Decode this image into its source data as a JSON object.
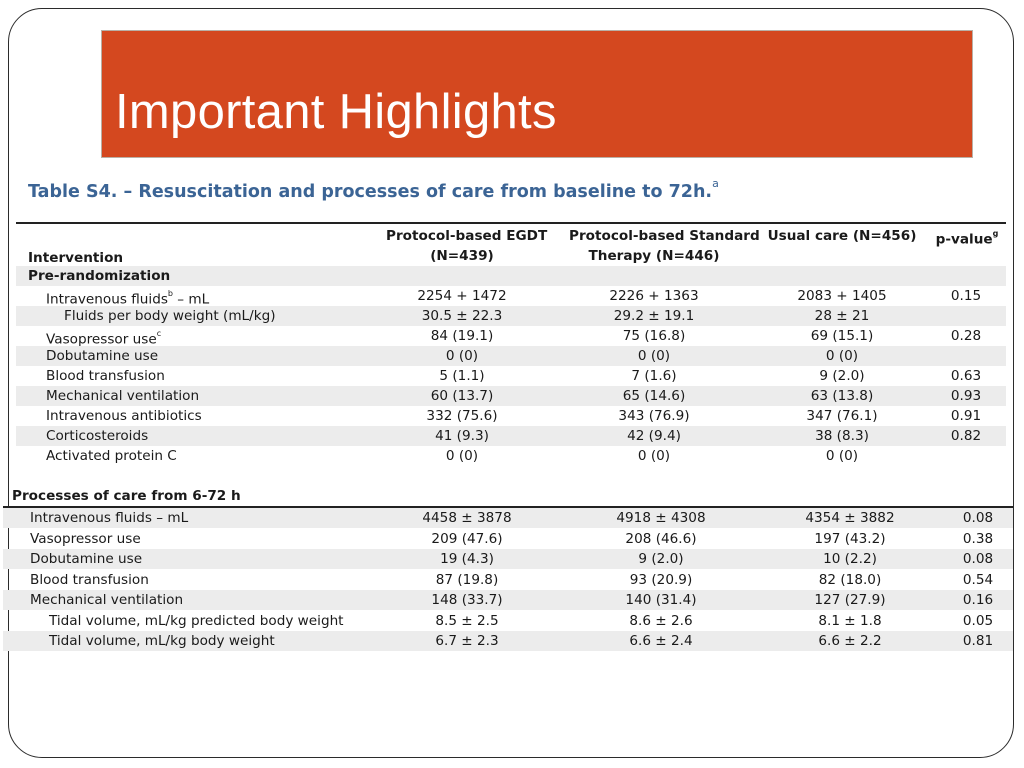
{
  "slide": {
    "title": "Important Highlights"
  },
  "table": {
    "title": "Table S4. – Resuscitation and processes of care from baseline to 72h.",
    "title_sup": "a",
    "headers": {
      "intervention": "Intervention",
      "egdt_line1": "Protocol-based EGDT",
      "egdt_line2": "(N=439)",
      "std_line1": "Protocol-based Standard",
      "std_line2": "Therapy (N=446)",
      "usual": "Usual care (N=456)",
      "pvalue": "p-value",
      "pvalue_sup": "g"
    },
    "section1": {
      "title": "Pre-randomization",
      "rows": [
        {
          "label": "Intravenous fluids",
          "sup": "b",
          "suffix": " – mL",
          "egdt": "2254 + 1472",
          "std": "2226 + 1363",
          "usual": "2083 + 1405",
          "p": "0.15"
        },
        {
          "label": "Fluids per body weight (mL/kg)",
          "egdt": "30.5 ± 22.3",
          "std": "29.2 ± 19.1",
          "usual": "28 ± 21",
          "p": ""
        },
        {
          "label": "Vasopressor use",
          "sup": "c",
          "egdt": "84 (19.1)",
          "std": "75 (16.8)",
          "usual": "69 (15.1)",
          "p": "0.28"
        },
        {
          "label": "Dobutamine use",
          "egdt": "0 (0)",
          "std": "0 (0)",
          "usual": "0 (0)",
          "p": ""
        },
        {
          "label": "Blood transfusion",
          "egdt": "5 (1.1)",
          "std": "7 (1.6)",
          "usual": "9 (2.0)",
          "p": "0.63"
        },
        {
          "label": "Mechanical ventilation",
          "egdt": "60 (13.7)",
          "std": "65 (14.6)",
          "usual": "63 (13.8)",
          "p": "0.93"
        },
        {
          "label": "Intravenous antibiotics",
          "egdt": "332 (75.6)",
          "std": "343 (76.9)",
          "usual": "347 (76.1)",
          "p": "0.91"
        },
        {
          "label": "Corticosteroids",
          "egdt": "41 (9.3)",
          "std": "42 (9.4)",
          "usual": "38 (8.3)",
          "p": "0.82"
        },
        {
          "label": "Activated protein C",
          "egdt": "0 (0)",
          "std": "0 (0)",
          "usual": "0 (0)",
          "p": ""
        }
      ]
    },
    "section2": {
      "title": "Processes of care from 6-72 h",
      "rows": [
        {
          "label": "Intravenous fluids – mL",
          "egdt": "4458 ± 3878",
          "std": "4918 ± 4308",
          "usual": "4354 ± 3882",
          "p": "0.08"
        },
        {
          "label": "Vasopressor use",
          "egdt": "209 (47.6)",
          "std": "208 (46.6)",
          "usual": "197 (43.2)",
          "p": "0.38"
        },
        {
          "label": "Dobutamine use",
          "egdt": "19 (4.3)",
          "std": "9 (2.0)",
          "usual": "10 (2.2)",
          "p": "0.08"
        },
        {
          "label": "Blood transfusion",
          "egdt": "87 (19.8)",
          "std": "93 (20.9)",
          "usual": "82 (18.0)",
          "p": "0.54"
        },
        {
          "label": "Mechanical ventilation",
          "egdt": "148 (33.7)",
          "std": "140 (31.4)",
          "usual": "127 (27.9)",
          "p": "0.16"
        },
        {
          "label": "Tidal volume, mL/kg predicted body weight",
          "egdt": "8.5 ± 2.5",
          "std": "8.6 ± 2.6",
          "usual": "8.1 ± 1.8",
          "p": "0.05"
        },
        {
          "label": "Tidal volume, mL/kg body weight",
          "egdt": "6.7 ± 2.3",
          "std": "6.6 ± 2.4",
          "usual": "6.6 ± 2.2",
          "p": "0.81"
        }
      ]
    }
  }
}
